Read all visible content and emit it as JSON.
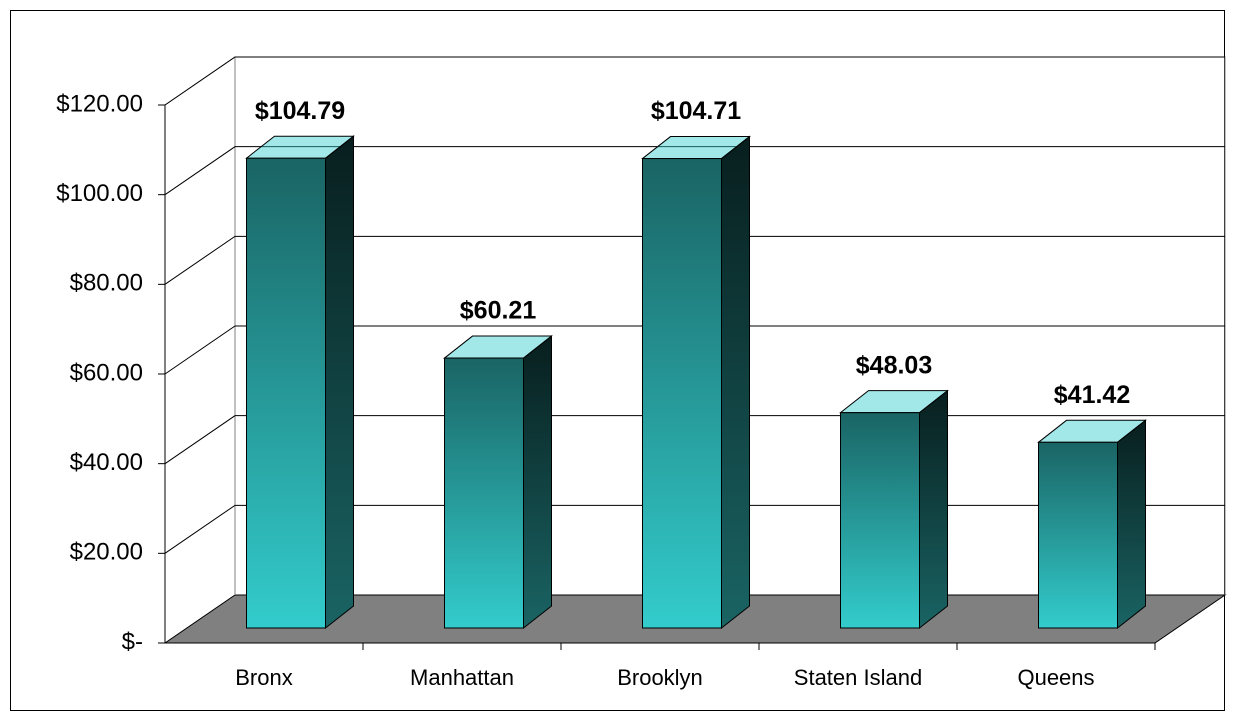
{
  "chart_data": {
    "type": "bar3d",
    "categories": [
      "Bronx",
      "Manhattan",
      "Brooklyn",
      "Staten Island",
      "Queens"
    ],
    "values": [
      104.79,
      60.21,
      104.71,
      48.03,
      41.42
    ],
    "value_labels": [
      "$104.79",
      "$60.21",
      "$104.71",
      "$48.03",
      "$41.42"
    ],
    "color": "#33cccc",
    "ylim": [
      0,
      120
    ],
    "yticks": [
      {
        "value": 0,
        "label": "$-"
      },
      {
        "value": 20,
        "label": "$20.00"
      },
      {
        "value": 40,
        "label": "$40.00"
      },
      {
        "value": 60,
        "label": "$60.00"
      },
      {
        "value": 80,
        "label": "$80.00"
      },
      {
        "value": 100,
        "label": "$100.00"
      },
      {
        "value": 120,
        "label": "$120.00"
      }
    ],
    "grid": true
  }
}
